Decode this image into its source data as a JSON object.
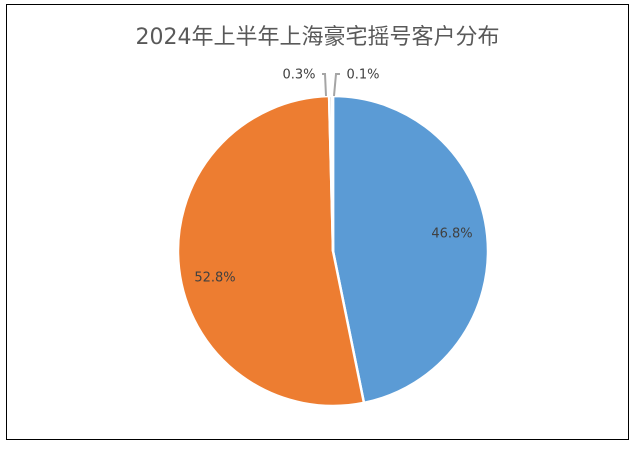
{
  "chart_data": {
    "type": "pie",
    "title": "2024年上半年上海豪宅摇号客户分布",
    "slices": [
      {
        "label": "46.8%",
        "value": 46.8,
        "color": "#5B9BD5"
      },
      {
        "label": "52.8%",
        "value": 52.8,
        "color": "#ED7D31"
      },
      {
        "label": "0.3%",
        "value": 0.3,
        "color": "#A5A5A5"
      },
      {
        "label": "0.1%",
        "value": 0.1,
        "color": "#FFC000"
      }
    ],
    "legend": "none"
  }
}
